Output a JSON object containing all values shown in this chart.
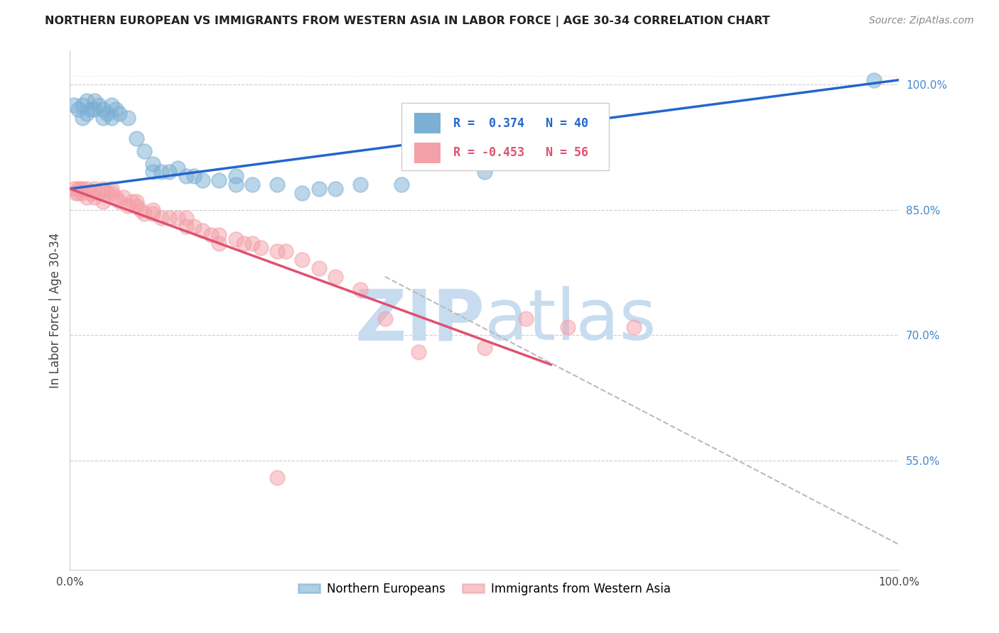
{
  "title": "NORTHERN EUROPEAN VS IMMIGRANTS FROM WESTERN ASIA IN LABOR FORCE | AGE 30-34 CORRELATION CHART",
  "source": "Source: ZipAtlas.com",
  "ylabel": "In Labor Force | Age 30-34",
  "xlim": [
    0.0,
    1.0
  ],
  "ylim": [
    0.42,
    1.04
  ],
  "yticks": [
    0.55,
    0.7,
    0.85,
    1.0
  ],
  "ytick_labels": [
    "55.0%",
    "70.0%",
    "85.0%",
    "100.0%"
  ],
  "legend_R1": "0.374",
  "legend_N1": "40",
  "legend_R2": "-0.453",
  "legend_N2": "56",
  "blue_color": "#7BAFD4",
  "pink_color": "#F4A0A8",
  "blue_line_color": "#2266CC",
  "pink_line_color": "#E05070",
  "dashed_line_color": "#BBBBBB",
  "watermark_color": "#C8DCF0",
  "background_color": "#FFFFFF",
  "blue_line_x0": 0.0,
  "blue_line_y0": 0.875,
  "blue_line_x1": 1.0,
  "blue_line_y1": 1.005,
  "pink_line_x0": 0.0,
  "pink_line_y0": 0.875,
  "pink_line_x1": 0.58,
  "pink_line_y1": 0.665,
  "dash_line_x0": 0.38,
  "dash_line_y0": 0.77,
  "dash_line_x1": 1.0,
  "dash_line_y1": 0.45,
  "blue_scatter_x": [
    0.005,
    0.01,
    0.015,
    0.015,
    0.02,
    0.02,
    0.025,
    0.03,
    0.03,
    0.035,
    0.04,
    0.04,
    0.045,
    0.05,
    0.05,
    0.055,
    0.06,
    0.07,
    0.08,
    0.09,
    0.1,
    0.1,
    0.11,
    0.12,
    0.13,
    0.14,
    0.16,
    0.18,
    0.2,
    0.22,
    0.25,
    0.28,
    0.3,
    0.35,
    0.4,
    0.5,
    0.32,
    0.2,
    0.15,
    0.97
  ],
  "blue_scatter_y": [
    0.975,
    0.97,
    0.975,
    0.96,
    0.965,
    0.98,
    0.97,
    0.98,
    0.97,
    0.975,
    0.96,
    0.97,
    0.965,
    0.96,
    0.975,
    0.97,
    0.965,
    0.96,
    0.935,
    0.92,
    0.905,
    0.895,
    0.895,
    0.895,
    0.9,
    0.89,
    0.885,
    0.885,
    0.89,
    0.88,
    0.88,
    0.87,
    0.875,
    0.88,
    0.88,
    0.895,
    0.875,
    0.88,
    0.89,
    1.005
  ],
  "pink_scatter_x": [
    0.005,
    0.007,
    0.01,
    0.01,
    0.012,
    0.015,
    0.015,
    0.02,
    0.02,
    0.025,
    0.03,
    0.03,
    0.035,
    0.04,
    0.04,
    0.045,
    0.05,
    0.05,
    0.055,
    0.06,
    0.065,
    0.07,
    0.075,
    0.08,
    0.08,
    0.085,
    0.09,
    0.1,
    0.1,
    0.11,
    0.12,
    0.13,
    0.14,
    0.14,
    0.15,
    0.16,
    0.17,
    0.18,
    0.18,
    0.2,
    0.21,
    0.22,
    0.23,
    0.25,
    0.26,
    0.28,
    0.3,
    0.32,
    0.35,
    0.38,
    0.42,
    0.5,
    0.55,
    0.6,
    0.68,
    0.25
  ],
  "pink_scatter_y": [
    0.875,
    0.87,
    0.875,
    0.87,
    0.875,
    0.87,
    0.875,
    0.875,
    0.865,
    0.87,
    0.875,
    0.865,
    0.87,
    0.875,
    0.86,
    0.87,
    0.875,
    0.87,
    0.865,
    0.86,
    0.865,
    0.855,
    0.86,
    0.855,
    0.86,
    0.85,
    0.845,
    0.845,
    0.85,
    0.84,
    0.84,
    0.84,
    0.84,
    0.83,
    0.83,
    0.825,
    0.82,
    0.81,
    0.82,
    0.815,
    0.81,
    0.81,
    0.805,
    0.8,
    0.8,
    0.79,
    0.78,
    0.77,
    0.755,
    0.72,
    0.68,
    0.685,
    0.72,
    0.71,
    0.71,
    0.53
  ]
}
